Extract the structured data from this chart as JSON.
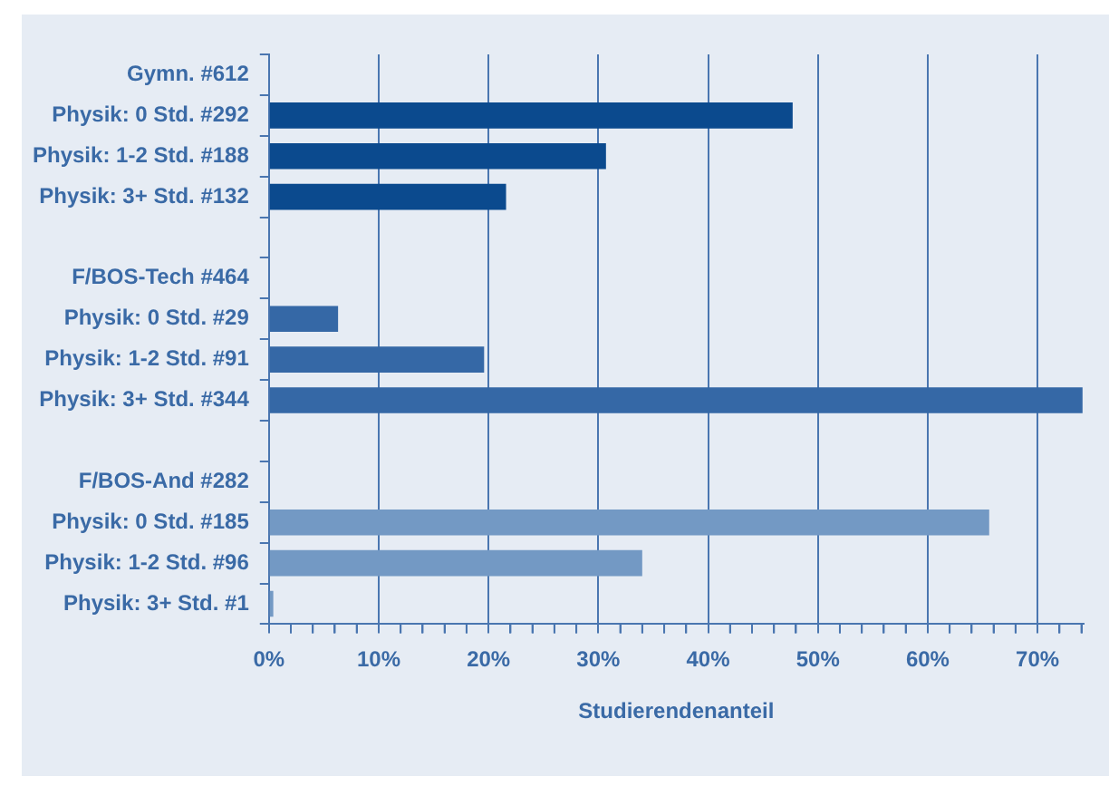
{
  "chart_data": {
    "type": "bar",
    "orientation": "horizontal",
    "xlabel": "Studierendenanteil",
    "categories": [
      "Gymn. #612",
      "Physik: 0 Std. #292",
      "Physik: 1-2 Std. #188",
      "Physik: 3+ Std. #132",
      null,
      "F/BOS-Tech #464",
      "Physik: 0 Std. #29",
      "Physik: 1-2 Std. #91",
      "Physik: 3+ Std. #344",
      null,
      "F/BOS-And #282",
      "Physik: 0 Std. #185",
      "Physik: 1-2 Std. #96",
      "Physik: 3+ Std. #1"
    ],
    "values": [
      null,
      47.7,
      30.7,
      21.6,
      null,
      null,
      6.3,
      19.6,
      74.1,
      null,
      null,
      65.6,
      34.0,
      0.4
    ],
    "colors": [
      "#0b4a8e",
      "#0b4a8e",
      "#0b4a8e",
      "#0b4a8e",
      "#3568a6",
      "#3568a6",
      "#3568a6",
      "#3568a6",
      "#3568a6",
      "#7399c4",
      "#7399c4",
      "#7399c4",
      "#7399c4",
      "#7399c4"
    ],
    "xlim": [
      0,
      74.2
    ],
    "xticks": [
      {
        "value": 0,
        "label": "0%"
      },
      {
        "value": 2,
        "label": null
      },
      {
        "value": 4,
        "label": null
      },
      {
        "value": 6,
        "label": null
      },
      {
        "value": 8,
        "label": null
      },
      {
        "value": 10,
        "label": "10%"
      },
      {
        "value": 12,
        "label": null
      },
      {
        "value": 14,
        "label": null
      },
      {
        "value": 16,
        "label": null
      },
      {
        "value": 18,
        "label": null
      },
      {
        "value": 20,
        "label": "20%"
      },
      {
        "value": 22,
        "label": null
      },
      {
        "value": 24,
        "label": null
      },
      {
        "value": 26,
        "label": null
      },
      {
        "value": 28,
        "label": null
      },
      {
        "value": 30,
        "label": "30%"
      },
      {
        "value": 32,
        "label": null
      },
      {
        "value": 34,
        "label": null
      },
      {
        "value": 36,
        "label": null
      },
      {
        "value": 38,
        "label": null
      },
      {
        "value": 40,
        "label": "40%"
      },
      {
        "value": 42,
        "label": null
      },
      {
        "value": 44,
        "label": null
      },
      {
        "value": 46,
        "label": null
      },
      {
        "value": 48,
        "label": null
      },
      {
        "value": 50,
        "label": "50%"
      },
      {
        "value": 52,
        "label": null
      },
      {
        "value": 54,
        "label": null
      },
      {
        "value": 56,
        "label": null
      },
      {
        "value": 58,
        "label": null
      },
      {
        "value": 60,
        "label": "60%"
      },
      {
        "value": 62,
        "label": null
      },
      {
        "value": 64,
        "label": null
      },
      {
        "value": 66,
        "label": null
      },
      {
        "value": 68,
        "label": null
      },
      {
        "value": 70,
        "label": "70%"
      },
      {
        "value": 72,
        "label": null
      },
      {
        "value": 74,
        "label": null
      }
    ],
    "grid": "x",
    "legend": false
  }
}
